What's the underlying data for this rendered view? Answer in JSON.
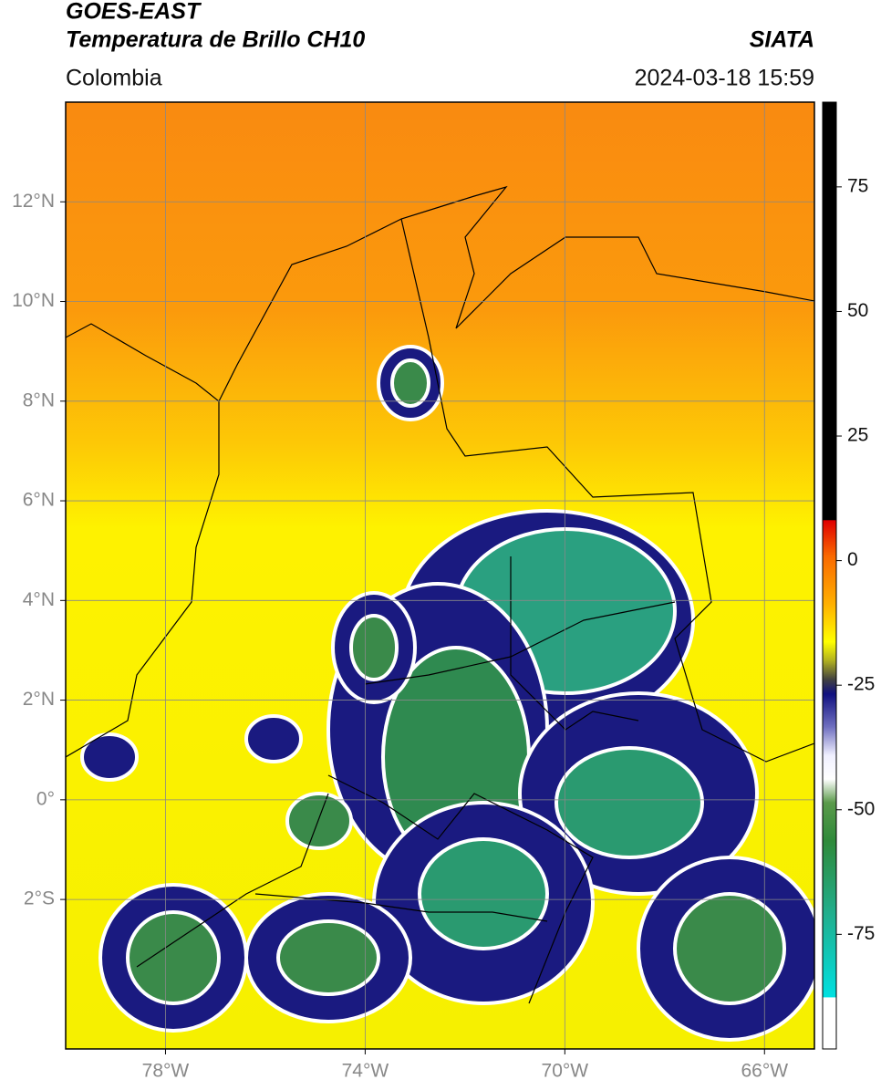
{
  "header": {
    "title_line1": "GOES-EAST",
    "title_line2": "Temperatura de Brillo CH10",
    "region": "Colombia",
    "source": "SIATA",
    "datetime": "2024-03-18 15:59"
  },
  "map": {
    "xlim": [
      -80,
      -65
    ],
    "ylim": [
      -5,
      14
    ],
    "xticks": [
      {
        "value": -78,
        "label": "78°W"
      },
      {
        "value": -74,
        "label": "74°W"
      },
      {
        "value": -70,
        "label": "70°W"
      },
      {
        "value": -66,
        "label": "66°W"
      }
    ],
    "yticks": [
      {
        "value": 12,
        "label": "12°N"
      },
      {
        "value": 10,
        "label": "10°N"
      },
      {
        "value": 8,
        "label": "8°N"
      },
      {
        "value": 6,
        "label": "6°N"
      },
      {
        "value": 4,
        "label": "4°N"
      },
      {
        "value": 2,
        "label": "2°N"
      },
      {
        "value": 0,
        "label": "0°"
      },
      {
        "value": -2,
        "label": "2°S"
      }
    ],
    "grid": true
  },
  "colorbar": {
    "lim": [
      -98,
      92
    ],
    "ticks": [
      75,
      50,
      25,
      0,
      -25,
      -50,
      -75
    ]
  }
}
